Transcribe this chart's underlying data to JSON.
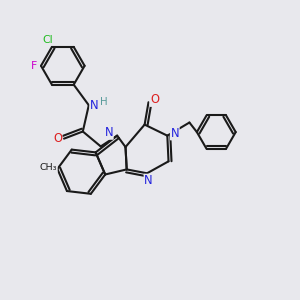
{
  "bg": "#e8e8ed",
  "bc": "#1a1a1a",
  "lw": 1.5,
  "colors": {
    "Cl": "#22bb22",
    "F": "#cc00cc",
    "N": "#2222dd",
    "O": "#dd2222",
    "H": "#559999",
    "C": "#1a1a1a"
  },
  "fs": 7.8,
  "figsize": [
    3.0,
    3.0
  ],
  "dpi": 100
}
